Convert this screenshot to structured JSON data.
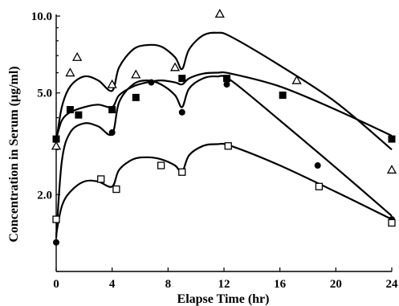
{
  "chart_data": {
    "type": "scatter",
    "title": "",
    "xlabel": "Elapse Time (hr)",
    "ylabel": "Concentration in Serum (μg/ml)",
    "xlim": [
      0,
      24
    ],
    "ylim": [
      1.0,
      10.0
    ],
    "yscale": "log",
    "x_ticks": [
      0,
      4,
      8,
      12,
      16,
      20,
      24
    ],
    "x_tick_labels": [
      "0",
      "4",
      "8",
      "12",
      "16",
      "20",
      "24"
    ],
    "y_ticks": [
      2.0,
      5.0,
      10.0
    ],
    "y_tick_labels": [
      "2.0",
      "5.0",
      "10.0"
    ],
    "grid": false,
    "legend": "none",
    "series": [
      {
        "marker": "triangle-open",
        "points": [
          [
            0,
            3.1
          ],
          [
            1.0,
            6.0
          ],
          [
            1.5,
            6.9
          ],
          [
            4.0,
            5.4
          ],
          [
            5.7,
            5.9
          ],
          [
            8.5,
            6.3
          ],
          [
            11.7,
            10.2
          ],
          [
            17.2,
            5.6
          ],
          [
            24.0,
            2.5
          ]
        ],
        "curve": [
          [
            0,
            3.2
          ],
          [
            0.4,
            4.4
          ],
          [
            1.0,
            5.3
          ],
          [
            2.0,
            5.8
          ],
          [
            3.0,
            5.6
          ],
          [
            4.0,
            5.1
          ],
          [
            4.5,
            6.3
          ],
          [
            5.5,
            7.4
          ],
          [
            6.5,
            7.7
          ],
          [
            7.5,
            7.6
          ],
          [
            8.5,
            6.9
          ],
          [
            9.0,
            6.2
          ],
          [
            9.5,
            7.4
          ],
          [
            10.5,
            8.4
          ],
          [
            11.5,
            8.6
          ],
          [
            12.5,
            8.3
          ],
          [
            16.0,
            6.4
          ],
          [
            20.0,
            4.6
          ],
          [
            24.0,
            3.0
          ]
        ]
      },
      {
        "marker": "square-filled",
        "points": [
          [
            0,
            3.3
          ],
          [
            1.0,
            4.3
          ],
          [
            1.6,
            4.1
          ],
          [
            4.0,
            4.3
          ],
          [
            5.7,
            4.8
          ],
          [
            9.0,
            5.7
          ],
          [
            12.2,
            5.7
          ],
          [
            16.2,
            4.9
          ],
          [
            24.0,
            3.3
          ]
        ],
        "curve": [
          [
            0,
            3.3
          ],
          [
            0.4,
            3.9
          ],
          [
            1.0,
            4.2
          ],
          [
            2.0,
            4.4
          ],
          [
            3.0,
            4.5
          ],
          [
            4.0,
            4.4
          ],
          [
            4.5,
            4.9
          ],
          [
            5.5,
            5.3
          ],
          [
            6.5,
            5.5
          ],
          [
            7.5,
            5.6
          ],
          [
            8.5,
            5.5
          ],
          [
            9.0,
            5.4
          ],
          [
            9.5,
            5.7
          ],
          [
            10.5,
            5.95
          ],
          [
            11.5,
            6.0
          ],
          [
            12.5,
            5.95
          ],
          [
            16.0,
            5.3
          ],
          [
            20.0,
            4.3
          ],
          [
            24.0,
            3.4
          ]
        ]
      },
      {
        "marker": "circle-filled",
        "points": [
          [
            0,
            1.3
          ],
          [
            4.0,
            3.5
          ],
          [
            6.8,
            5.5
          ],
          [
            9.0,
            4.2
          ],
          [
            12.2,
            5.4
          ],
          [
            18.7,
            2.6
          ],
          [
            24.0,
            1.6
          ]
        ],
        "curve": [
          [
            0,
            1.35
          ],
          [
            0.4,
            2.7
          ],
          [
            1.0,
            3.5
          ],
          [
            2.0,
            3.8
          ],
          [
            3.0,
            3.7
          ],
          [
            4.0,
            3.45
          ],
          [
            4.5,
            4.6
          ],
          [
            5.5,
            5.4
          ],
          [
            6.5,
            5.6
          ],
          [
            7.5,
            5.4
          ],
          [
            8.5,
            4.9
          ],
          [
            9.0,
            4.4
          ],
          [
            9.5,
            5.2
          ],
          [
            10.5,
            5.7
          ],
          [
            11.5,
            5.8
          ],
          [
            12.5,
            5.6
          ],
          [
            16.0,
            3.9
          ],
          [
            20.0,
            2.55
          ],
          [
            24.0,
            1.65
          ]
        ]
      },
      {
        "marker": "square-open",
        "points": [
          [
            0,
            1.6
          ],
          [
            3.2,
            2.3
          ],
          [
            4.3,
            2.1
          ],
          [
            7.5,
            2.6
          ],
          [
            9.0,
            2.45
          ],
          [
            12.3,
            3.1
          ],
          [
            18.8,
            2.15
          ],
          [
            24.0,
            1.55
          ]
        ],
        "curve": [
          [
            0,
            1.4
          ],
          [
            0.4,
            1.8
          ],
          [
            1.0,
            2.05
          ],
          [
            2.0,
            2.25
          ],
          [
            3.0,
            2.25
          ],
          [
            4.0,
            2.15
          ],
          [
            4.5,
            2.5
          ],
          [
            5.5,
            2.75
          ],
          [
            6.5,
            2.8
          ],
          [
            7.5,
            2.75
          ],
          [
            8.5,
            2.6
          ],
          [
            9.0,
            2.45
          ],
          [
            9.5,
            2.85
          ],
          [
            10.5,
            3.1
          ],
          [
            11.5,
            3.15
          ],
          [
            12.5,
            3.1
          ],
          [
            16.0,
            2.6
          ],
          [
            20.0,
            2.05
          ],
          [
            24.0,
            1.6
          ]
        ]
      }
    ]
  }
}
